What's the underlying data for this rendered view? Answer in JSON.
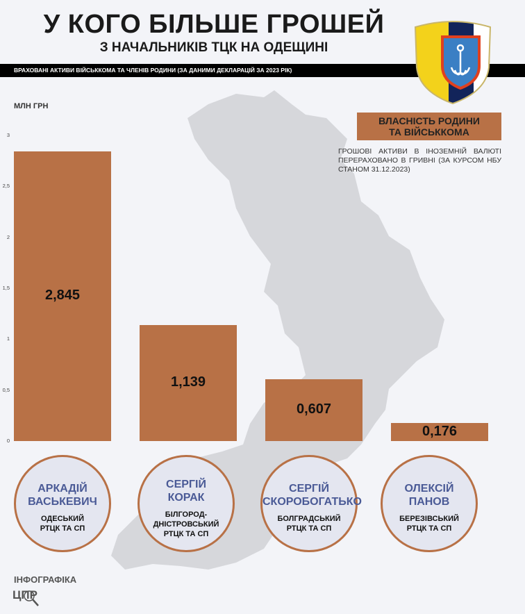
{
  "header": {
    "title": "У КОГО БІЛЬШЕ ГРОШЕЙ",
    "subtitle": "З НАЧАЛЬНИКІВ ТЦК НА ОДЕЩИНІ",
    "band_text": "ВРАХОВАНІ АКТИВИ ВІЙСЬККОМА ТА ЧЛЕНІВ РОДИНИ (ЗА ДАНИМИ ДЕКЛАРАЦІЙ ЗА 2023 РІК)"
  },
  "legend": {
    "label_line1": "ВЛАСНІСТЬ РОДИНИ",
    "label_line2": "ТА ВІЙСЬККОМА",
    "color": "#b87146"
  },
  "note": "ГРОШОВІ АКТИВИ В ІНОЗЕМНІЙ ВАЛЮТІ ПЕРЕРАХОВАНО В ГРИВНІ (ЗА КУРСОМ НБУ СТАНОМ 31.12.2023)",
  "chart_data": {
    "type": "bar",
    "ylabel": "МЛН ГРН",
    "ylim": [
      0,
      3
    ],
    "yticks": [
      "0",
      "0,5",
      "1",
      "1,5",
      "2",
      "2,5",
      "3"
    ],
    "ytick_values": [
      0,
      0.5,
      1,
      1.5,
      2,
      2.5,
      3
    ],
    "grid": false,
    "categories": [
      "АРКАДІЙ ВАСЬКЕВИЧ",
      "СЕРГІЙ КОРАК",
      "СЕРГІЙ СКОРОБОГАТЬКО",
      "ОЛЕКСІЙ ПАНОВ"
    ],
    "values": [
      2.845,
      1.139,
      0.607,
      0.176
    ],
    "data_labels": [
      "2,845",
      "1,139",
      "0,607",
      "0,176"
    ],
    "bar_color": "#b87146"
  },
  "people": [
    {
      "first": "АРКАДІЙ",
      "last": "ВАСЬКЕВИЧ",
      "unit1": "ОДЕСЬКИЙ",
      "unit2": "РТЦК ТА СП",
      "unit3": ""
    },
    {
      "first": "СЕРГІЙ",
      "last": "КОРАК",
      "unit1": "БІЛГОРОД-",
      "unit2": "ДНІСТРОВСЬКИЙ",
      "unit3": "РТЦК ТА СП"
    },
    {
      "first": "СЕРГІЙ",
      "last": "СКОРОБОГАТЬКО",
      "unit1": "БОЛГРАДСЬКИЙ",
      "unit2": "РТЦК ТА СП",
      "unit3": ""
    },
    {
      "first": "ОЛЕКСІЙ",
      "last": "ПАНОВ",
      "unit1": "БЕРЕЗІВСЬКИЙ",
      "unit2": "РТЦК ТА СП",
      "unit3": ""
    }
  ],
  "footer": {
    "label": "ІНФОГРАФІКА",
    "logo_text": "ЦПР"
  }
}
